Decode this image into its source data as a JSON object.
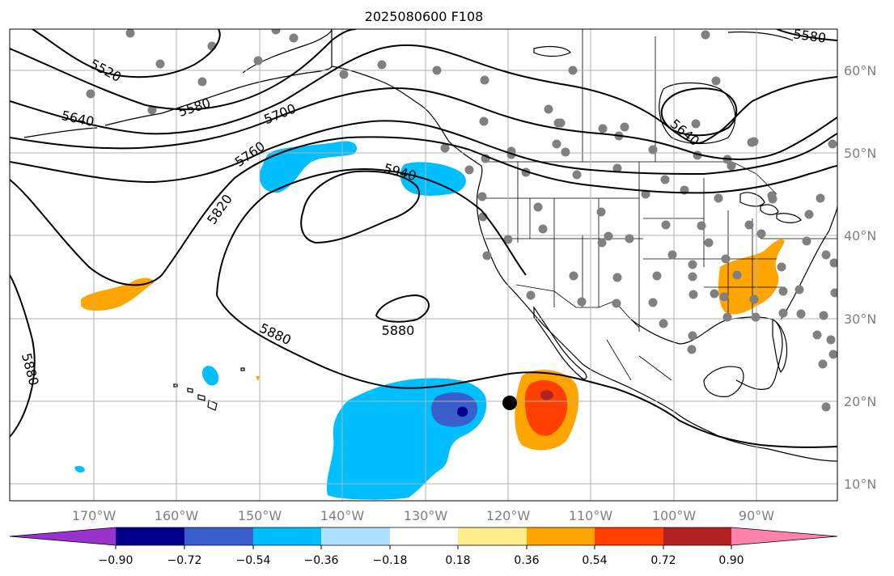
{
  "title": "2025080600 F108",
  "colors": {
    "neg_090": "#9932cc",
    "neg_072": "#00008b",
    "neg_054": "#3a5fcd",
    "neg_036": "#00bfff",
    "neg_018": "#b0e2ff",
    "zero": "#ffffff",
    "pos_018": "#ffec8b",
    "pos_036": "#ffa500",
    "pos_054": "#ff4000",
    "pos_072": "#b22222",
    "pos_090": "#ff82ab",
    "station_dot": "#808080",
    "storm_marker": "#000000"
  },
  "map": {
    "lon_labels": [
      "170°W",
      "160°W",
      "150°W",
      "140°W",
      "130°W",
      "120°W",
      "110°W",
      "100°W",
      "90°W"
    ],
    "lat_labels": [
      "60°N",
      "50°N",
      "40°N",
      "30°N",
      "20°N",
      "10°N"
    ],
    "contour_labels": [
      "5520",
      "5580",
      "5640",
      "5700",
      "5760",
      "5820",
      "5880",
      "5880",
      "5880",
      "5940",
      "5640",
      "5580"
    ]
  },
  "colorbar": {
    "tick_labels": [
      "−0.90",
      "−0.72",
      "−0.54",
      "−0.36",
      "−0.18",
      "0.18",
      "0.36",
      "0.54",
      "0.72",
      "0.90"
    ]
  }
}
